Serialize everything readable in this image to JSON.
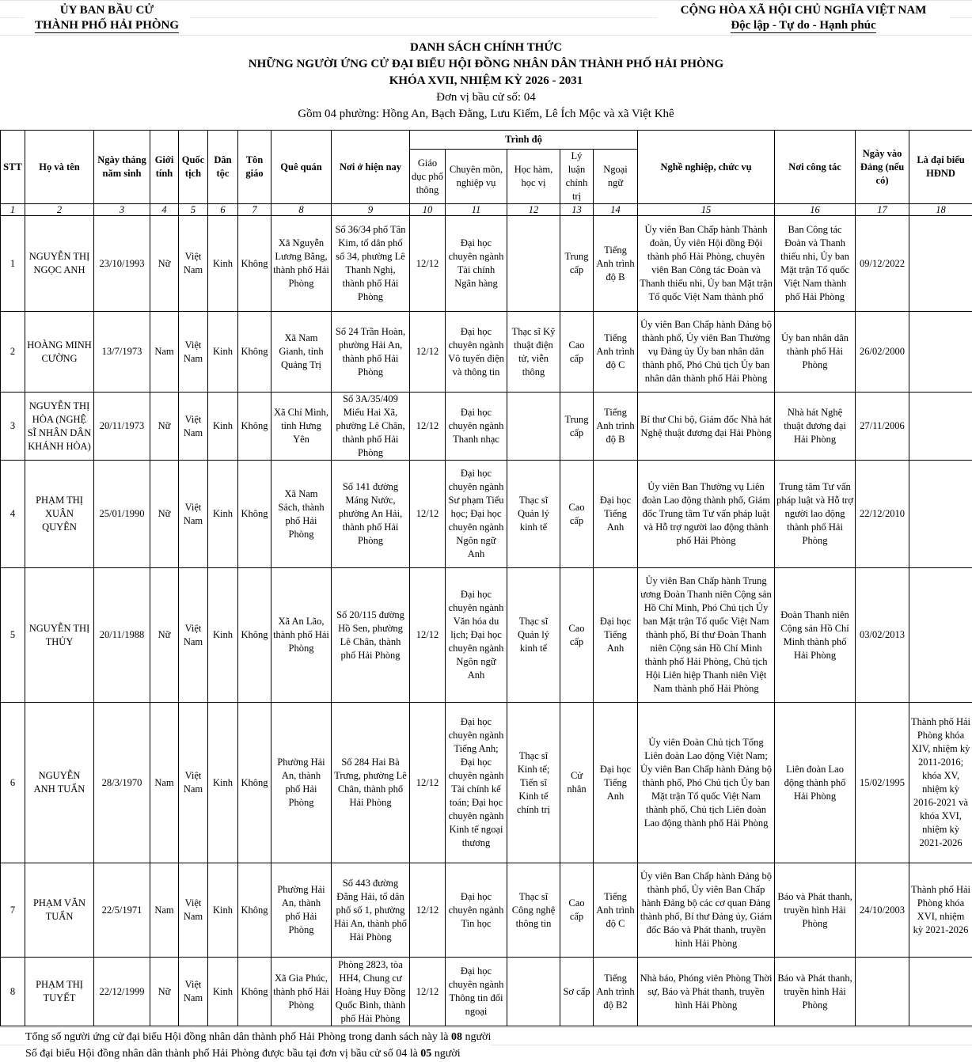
{
  "header": {
    "left_line1": "ỦY BAN BẦU CỬ",
    "left_line2": "THÀNH PHỐ HẢI PHÒNG",
    "right_line1": "CỘNG HÒA XÃ HỘI CHỦ NGHĨA VIỆT NAM",
    "right_line2": "Độc lập - Tự do - Hạnh phúc"
  },
  "title": {
    "line1": "DANH SÁCH CHÍNH THỨC",
    "line2": "NHỮNG NGƯỜI ỨNG CỬ ĐẠI BIỂU HỘI ĐỒNG NHÂN DÂN THÀNH PHỐ HẢI PHÒNG",
    "line3": "KHÓA XVII, NHIỆM KỲ 2026 - 2031",
    "line4": "Đơn vị bầu cử số: 04",
    "line5": "Gồm 04 phường: Hồng An, Bạch Đằng, Lưu Kiếm, Lê Ích Mộc và xã Việt Khê"
  },
  "columns": {
    "stt": "STT",
    "name": "Họ và tên",
    "dob": "Ngày tháng năm sinh",
    "gender": "Giới tính",
    "nationality": "Quốc tịch",
    "ethnicity": "Dân tộc",
    "religion": "Tôn giáo",
    "hometown": "Quê quán",
    "residence": "Nơi ở hiện nay",
    "education": "Trình độ",
    "general": "Giáo dục phổ thông",
    "professional": "Chuyên môn, nghiệp vụ",
    "degree": "Học hàm, học vị",
    "political": "Lý luận chính trị",
    "language": "Ngoại ngữ",
    "occupation": "Nghề nghiệp, chức vụ",
    "workplace": "Nơi công tác",
    "party_date": "Ngày vào Đảng (nếu có)",
    "delegate": "Là đại biểu HĐND"
  },
  "column_numbers": [
    "1",
    "2",
    "3",
    "4",
    "5",
    "6",
    "7",
    "8",
    "9",
    "10",
    "11",
    "12",
    "13",
    "14",
    "15",
    "16",
    "17",
    "18"
  ],
  "rows": [
    {
      "c": [
        "1",
        "NGUYỄN THỊ NGỌC ANH",
        "23/10/1993",
        "Nữ",
        "Việt Nam",
        "Kinh",
        "Không",
        "Xã Nguyễn Lương Bằng, thành phố Hải Phòng",
        "Số 36/34 phố Tân Kim, tổ dân phố số 34, phường Lê Thanh Nghị, thành phố Hải Phòng",
        "12/12",
        "Đại học chuyên ngành Tài chính Ngân hàng",
        "",
        "Trung cấp",
        "Tiếng Anh trình độ B",
        "Ủy viên Ban Chấp hành Thành đoàn, Ủy viên Hội đồng Đội thành phố Hải Phòng, chuyên viên Ban Công tác Đoàn và Thanh thiếu nhi, Ủy ban Mặt trận Tổ quốc Việt Nam thành phố",
        "Ban Công tác Đoàn và Thanh thiếu nhi, Ủy ban Mặt trận Tổ quốc Việt Nam thành phố Hải Phòng",
        "09/12/2022",
        ""
      ]
    },
    {
      "c": [
        "2",
        "HOÀNG MINH CƯỜNG",
        "13/7/1973",
        "Nam",
        "Việt Nam",
        "Kinh",
        "Không",
        "Xã Nam Gianh, tỉnh Quảng Trị",
        "Số 24 Trần Hoàn, phường Hải An, thành phố Hải Phòng",
        "12/12",
        "Đại học chuyên ngành Vô tuyến điện và thông tin",
        "Thạc sĩ Kỹ thuật điện tử, viễn thông",
        "Cao cấp",
        "Tiếng Anh trình độ C",
        "Ủy viên Ban Chấp hành Đảng bộ thành phố, Ủy viên Ban Thường vụ Đảng ủy Ủy ban nhân dân thành phố, Phó Chủ tịch Ủy ban nhân dân thành phố Hải Phòng",
        "Ủy ban nhân dân thành phố Hải Phòng",
        "26/02/2000",
        ""
      ]
    },
    {
      "c": [
        "3",
        "NGUYỄN THỊ HÒA (NGHỆ SĨ NHÂN DÂN KHÁNH HÒA)",
        "20/11/1973",
        "Nữ",
        "Việt Nam",
        "Kinh",
        "Không",
        "Xã Chí Minh, tỉnh Hưng Yên",
        "Số 3A/35/409 Miếu Hai Xã, phường Lê Chân, thành phố Hải Phòng",
        "12/12",
        "Đại học chuyên ngành Thanh nhạc",
        "",
        "Trung cấp",
        "Tiếng Anh trình độ B",
        "Bí thư Chi bộ, Giám đốc Nhà hát Nghệ thuật đương đại Hải Phòng",
        "Nhà hát Nghệ thuật đương đại Hải Phòng",
        "27/11/2006",
        ""
      ]
    },
    {
      "c": [
        "4",
        "PHẠM THỊ XUÂN QUYÊN",
        "25/01/1990",
        "Nữ",
        "Việt Nam",
        "Kinh",
        "Không",
        "Xã Nam Sách, thành phố Hải Phòng",
        "Số 141 đường Máng Nước, phường An Hải, thành phố Hải Phòng",
        "12/12",
        "Đại học chuyên ngành Sư phạm Tiểu học; Đại học chuyên ngành Ngôn ngữ Anh",
        "Thạc sĩ Quản lý kinh tế",
        "Cao cấp",
        "Đại học Tiếng Anh",
        "Ủy viên Ban Thường vụ Liên đoàn Lao động thành phố, Giám đốc Trung tâm Tư vấn pháp luật và Hỗ trợ người lao động thành phố Hải Phòng",
        "Trung tâm Tư vấn pháp luật và Hỗ trợ người lao động thành phố Hải Phòng",
        "22/12/2010",
        ""
      ]
    },
    {
      "c": [
        "5",
        "NGUYỄN THỊ THỦY",
        "20/11/1988",
        "Nữ",
        "Việt Nam",
        "Kinh",
        "Không",
        "Xã An Lão, thành phố Hải Phòng",
        "Số 20/115 đường Hồ Sen, phường Lê Chân, thành phố Hải Phòng",
        "12/12",
        "Đại học chuyên ngành Văn hóa du lịch; Đại học chuyên ngành Ngôn ngữ Anh",
        "Thạc sĩ Quản lý kinh tế",
        "Cao cấp",
        "Đại học Tiếng Anh",
        "Ủy viên Ban Chấp hành Trung ương Đoàn Thanh niên Cộng sản Hồ Chí Minh, Phó Chủ tịch Ủy ban Mặt trận Tổ quốc Việt Nam thành phố, Bí thư Đoàn Thanh niên Cộng sản Hồ Chí Minh thành phố Hải Phòng, Chủ tịch Hội Liên hiệp Thanh niên Việt Nam thành phố Hải Phòng",
        "Đoàn Thanh niên Cộng sản Hồ Chí Minh thành phố Hải Phòng",
        "03/02/2013",
        ""
      ]
    },
    {
      "c": [
        "6",
        "NGUYỄN ANH TUẤN",
        "28/3/1970",
        "Nam",
        "Việt Nam",
        "Kinh",
        "Không",
        "Phường Hải An, thành phố Hải Phòng",
        "Số 284 Hai Bà Trưng, phường Lê Chân, thành phố Hải Phòng",
        "12/12",
        "Đại học chuyên ngành Tiếng Anh; Đại học chuyên ngành Tài chính kế toán; Đại học chuyên ngành Kinh tế ngoại thương",
        "Thạc sĩ Kinh tế; Tiến sĩ Kinh tế chính trị",
        "Cử nhân",
        "Đại học Tiếng Anh",
        "Ủy viên Đoàn Chủ tịch Tổng Liên đoàn Lao động Việt Nam; Ủy viên Ban Chấp hành Đảng bộ thành phố, Phó Chủ tịch Ủy ban Mặt trận Tổ quốc Việt Nam thành phố, Chủ tịch Liên đoàn Lao động thành phố Hải Phòng",
        "Liên đoàn Lao động thành phố Hải Phòng",
        "15/02/1995",
        "Thành phố Hải Phòng khóa XIV, nhiệm kỳ 2011-2016; khóa XV, nhiệm kỳ 2016-2021 và khóa XVI, nhiệm kỳ 2021-2026"
      ]
    },
    {
      "c": [
        "7",
        "PHẠM VĂN TUẤN",
        "22/5/1971",
        "Nam",
        "Việt Nam",
        "Kinh",
        "Không",
        "Phường Hải An, thành phố Hải Phòng",
        "Số 443 đường Đằng Hải, tổ dân phố số 1, phường Hải An, thành phố Hải Phòng",
        "12/12",
        "Đại học chuyên ngành Tin học",
        "Thạc sĩ Công nghệ thông tin",
        "Cao cấp",
        "Tiếng Anh trình độ C",
        "Ủy viên Ban Chấp hành Đảng bộ thành phố, Ủy viên Ban Chấp hành Đảng bộ các cơ quan Đảng thành phố, Bí thư Đảng ủy, Giám đốc Báo và Phát thanh, truyền hình Hải Phòng",
        "Báo và Phát thanh, truyền hình Hải Phòng",
        "24/10/2003",
        "Thành phố Hải Phòng khóa XVI, nhiệm kỳ 2021-2026"
      ]
    },
    {
      "c": [
        "8",
        "PHẠM THỊ TUYẾT",
        "22/12/1999",
        "Nữ",
        "Việt Nam",
        "Kinh",
        "Không",
        "Xã Gia Phúc, thành phố Hải Phòng",
        "Phòng 2823, tòa HH4, Chung cư Hoàng Huy Đồng Quốc Bình, thành phố Hải Phòng",
        "12/12",
        "Đại học chuyên ngành Thông tin đối ngoại",
        "",
        "Sơ cấp",
        "Tiếng Anh trình độ B2",
        "Nhà báo, Phóng viên Phòng Thời sự, Báo và Phát thanh, truyền hình Hải Phòng",
        "Báo và Phát thanh, truyền hình Hải Phòng",
        "",
        ""
      ]
    }
  ],
  "footer": {
    "line1_text": "Tổng số người ứng cử đại biểu Hội đồng nhân dân thành phố Hải Phòng trong danh sách này là ",
    "line1_count": "08",
    "line1_unit": " người",
    "line2_text": "Số đại biểu Hội đồng nhân dân thành phố Hải Phòng được bầu tại đơn vị bầu cử số 04 là ",
    "line2_count": "05",
    "line2_unit": " người"
  }
}
